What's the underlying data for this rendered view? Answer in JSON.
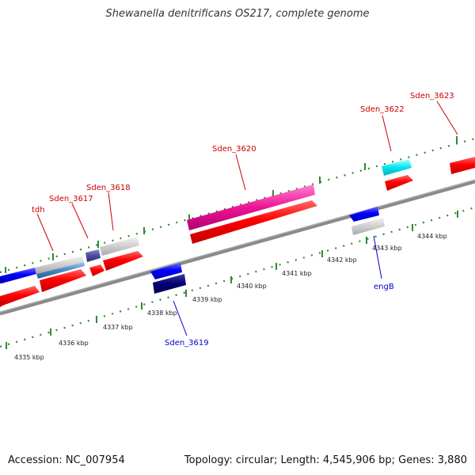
{
  "title": "Shewanella denitrificans OS217, complete genome",
  "footer": {
    "accession": "Accession: NC_007954",
    "topology": "Topology: circular; Length: 4,545,906 bp; Genes: 3,880"
  },
  "colors": {
    "backbone": "#8a8a8a",
    "tick": "#2e8b2e",
    "forward_label": "#cc0000",
    "reverse_label": "#0000cc"
  },
  "scale_labels": [
    "4335 kbp",
    "4336 kbp",
    "4337 kbp",
    "4338 kbp",
    "4339 kbp",
    "4340 kbp",
    "4341 kbp",
    "4342 kbp",
    "4343 kbp",
    "4344 kbp"
  ],
  "gene_labels": [
    "tdh",
    "Sden_3617",
    "Sden_3618",
    "Sden_3620",
    "Sden_3622",
    "Sden_3623",
    "Sden_3619",
    "engB"
  ]
}
